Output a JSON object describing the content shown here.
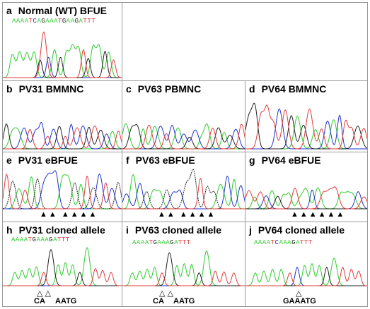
{
  "colors": {
    "A": "#2ecc2e",
    "C": "#2233cc",
    "G": "#222222",
    "T": "#e23b3b",
    "border": "#9a9a9a"
  },
  "panels": [
    {
      "id": "a",
      "letter": "a",
      "title": "Normal (WT) BFUE",
      "sequence": "AAAATCAGAAATGAAGATTT",
      "marks": "",
      "captions": []
    },
    {
      "id": "empty",
      "letter": "",
      "title": "",
      "sequence": "",
      "marks": "",
      "captions": []
    },
    {
      "id": "b",
      "letter": "b",
      "title": "PV31 BMMNC",
      "sequence": "",
      "marks": "",
      "captions": []
    },
    {
      "id": "c",
      "letter": "c",
      "title": "PV63 PBMNC",
      "sequence": "",
      "marks": "",
      "captions": []
    },
    {
      "id": "d",
      "letter": "d",
      "title": "PV64 BMMNC",
      "sequence": "",
      "marks": "",
      "captions": []
    },
    {
      "id": "e",
      "letter": "e",
      "title": "PV31 eBFUE",
      "sequence": "",
      "marks": "▲▲ ▲▲▲▲",
      "captions": []
    },
    {
      "id": "f",
      "letter": "f",
      "title": "PV63 eBFUE",
      "sequence": "",
      "marks": "▲▲ ▲▲▲▲",
      "captions": []
    },
    {
      "id": "g",
      "letter": "g",
      "title": "PV64 eBFUE",
      "sequence": "",
      "marks": "▲▲▲▲▲▲",
      "captions": []
    },
    {
      "id": "h",
      "letter": "h",
      "title": "PV31 cloned allele",
      "sequence": "AAAATGAAAGATTT",
      "marks": "△    △",
      "captions": [
        "CA",
        "AATG"
      ]
    },
    {
      "id": "i",
      "letter": "i",
      "title": "PV63 cloned allele",
      "sequence": "AAAATGAAAGATTT",
      "marks": "△   △",
      "captions": [
        "CA",
        "AATG"
      ]
    },
    {
      "id": "j",
      "letter": "j",
      "title": "PV64 cloned allele",
      "sequence": "AAAATCAAAGATTT",
      "marks": "△",
      "captions": [
        "GAAATG"
      ]
    }
  ]
}
